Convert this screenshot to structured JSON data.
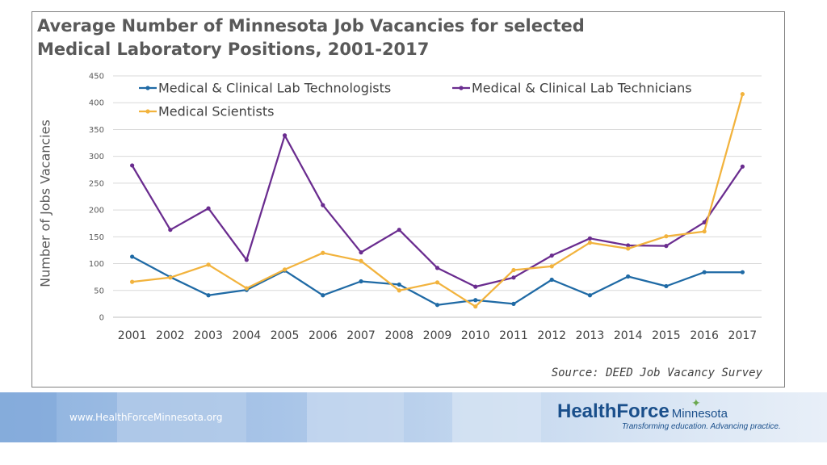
{
  "chart_data": {
    "type": "line",
    "title_lines": [
      "Average Number of Minnesota Job Vacancies for selected",
      "Medical Laboratory Positions, 2001-2017"
    ],
    "xlabel": "",
    "ylabel": "Number of Jobs Vacancies",
    "ylim": [
      0,
      450
    ],
    "yticks": [
      0,
      50,
      100,
      150,
      200,
      250,
      300,
      350,
      400,
      450
    ],
    "grid": true,
    "legend_position": "top",
    "categories": [
      "2001",
      "2002",
      "2003",
      "2004",
      "2005",
      "2006",
      "2007",
      "2008",
      "2009",
      "2010",
      "2011",
      "2012",
      "2013",
      "2014",
      "2015",
      "2016",
      "2017"
    ],
    "series": [
      {
        "name": "Medical & Clinical Lab Technologists",
        "color": "#1f6aa5",
        "values": [
          113,
          75,
          41,
          51,
          87,
          41,
          67,
          61,
          23,
          32,
          25,
          70,
          41,
          76,
          58,
          84,
          84
        ]
      },
      {
        "name": "Medical & Clinical Lab Technicians",
        "color": "#6a2c8f",
        "values": [
          283,
          163,
          203,
          107,
          339,
          209,
          121,
          163,
          92,
          57,
          74,
          115,
          147,
          134,
          133,
          177,
          281
        ]
      },
      {
        "name": "Medical Scientists",
        "color": "#f2b33d",
        "values": [
          66,
          74,
          98,
          54,
          89,
          120,
          105,
          50,
          65,
          20,
          88,
          95,
          139,
          128,
          151,
          160,
          416
        ]
      }
    ]
  },
  "source_note": "Source: DEED Job Vacancy Survey",
  "footer": {
    "website": "www.HealthForceMinnesota.org",
    "logo_main": "HealthForce",
    "logo_sub": "Minnesota",
    "tagline": "Transforming education. Advancing practice."
  },
  "colors": {
    "axis_text": "#595959",
    "grid": "#d9d9d9"
  }
}
